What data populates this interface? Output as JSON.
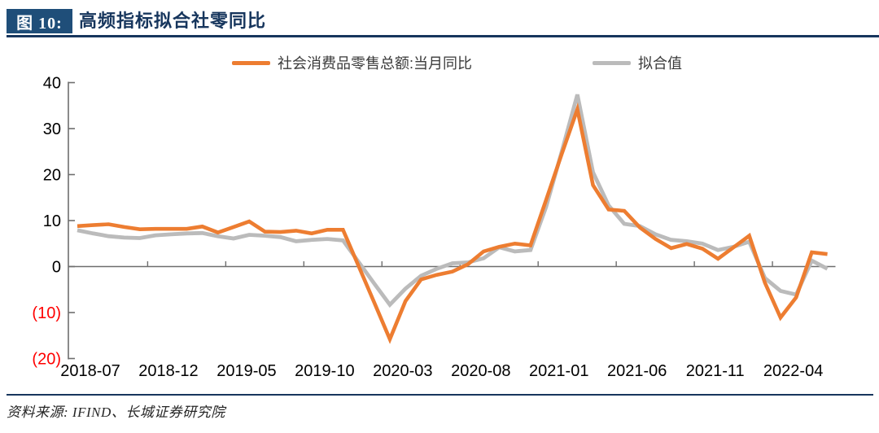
{
  "figure": {
    "tag": "图 10:",
    "title": "高频指标拟合社零同比",
    "source": "资料来源: IFIND、长城证券研究院"
  },
  "legend": [
    {
      "label": "社会消费品零售总额:当月同比",
      "color": "#ED7D31"
    },
    {
      "label": "拟合值",
      "color": "#BBBBBB"
    }
  ],
  "colors": {
    "header_blue": "#1F4E79",
    "rule_blue": "#17365D",
    "axis_gray": "#6e6e6e",
    "tick_label_black": "#000000",
    "negative_tick_red": "#FF0000",
    "series_orange": "#ED7D31",
    "series_gray": "#BBBBBB"
  },
  "chart_data": {
    "type": "line",
    "title": "高频指标拟合社零同比",
    "categories": [
      "2018-07",
      "2018-08",
      "2018-09",
      "2018-10",
      "2018-11",
      "2018-12",
      "2019-01",
      "2019-02",
      "2019-03",
      "2019-04",
      "2019-05",
      "2019-06",
      "2019-07",
      "2019-08",
      "2019-09",
      "2019-10",
      "2019-11",
      "2019-12",
      "2020-01",
      "2020-02",
      "2020-03",
      "2020-04",
      "2020-05",
      "2020-06",
      "2020-07",
      "2020-08",
      "2020-09",
      "2020-10",
      "2020-11",
      "2020-12",
      "2021-01",
      "2021-02",
      "2021-03",
      "2021-04",
      "2021-05",
      "2021-06",
      "2021-07",
      "2021-08",
      "2021-09",
      "2021-10",
      "2021-11",
      "2021-12",
      "2022-01",
      "2022-02",
      "2022-03",
      "2022-04",
      "2022-05",
      "2022-06",
      "2022-07"
    ],
    "series": [
      {
        "name": "社会消费品零售总额:当月同比",
        "color": "#ED7D31",
        "values": [
          8.8,
          9.0,
          9.2,
          8.6,
          8.1,
          8.2,
          8.2,
          8.2,
          8.7,
          7.4,
          8.6,
          9.8,
          7.6,
          7.5,
          7.8,
          7.2,
          8.0,
          8.0,
          0.1,
          -7.8,
          -15.8,
          -7.5,
          -2.8,
          -1.8,
          -1.1,
          0.5,
          3.3,
          4.3,
          5.0,
          4.6,
          14.5,
          24.5,
          34.2,
          17.7,
          12.4,
          12.1,
          8.5,
          6.0,
          4.0,
          4.9,
          3.9,
          1.7,
          4.2,
          6.7,
          -3.5,
          -11.1,
          -6.7,
          3.1,
          2.7
        ]
      },
      {
        "name": "拟合值",
        "color": "#BBBBBB",
        "values": [
          7.9,
          7.2,
          6.6,
          6.3,
          6.2,
          6.8,
          7.0,
          7.2,
          7.3,
          6.6,
          6.1,
          6.9,
          6.7,
          6.4,
          5.5,
          5.8,
          6.0,
          5.7,
          1.0,
          -3.7,
          -8.3,
          -4.8,
          -2.0,
          -0.5,
          0.7,
          0.9,
          1.8,
          4.2,
          3.3,
          3.6,
          13.0,
          25.0,
          37.4,
          20.5,
          13.3,
          9.3,
          8.8,
          7.0,
          5.8,
          5.5,
          5.0,
          3.6,
          4.3,
          5.4,
          -2.5,
          -5.3,
          -6.1,
          1.3,
          -0.5
        ]
      }
    ],
    "x_tick_labels": [
      "2018-07",
      "2018-12",
      "2019-05",
      "2019-10",
      "2020-03",
      "2020-08",
      "2021-01",
      "2021-06",
      "2021-11",
      "2022-04"
    ],
    "x_label_every": 5,
    "y_ticks": [
      40,
      30,
      20,
      10,
      0,
      -10,
      -20
    ],
    "y_tick_labels": [
      "40",
      "30",
      "20",
      "10",
      "0",
      "(10)",
      "(20)"
    ],
    "ylim": [
      -20,
      40
    ],
    "xlabel": "",
    "ylabel": "",
    "grid": false,
    "legend_position": "top"
  }
}
